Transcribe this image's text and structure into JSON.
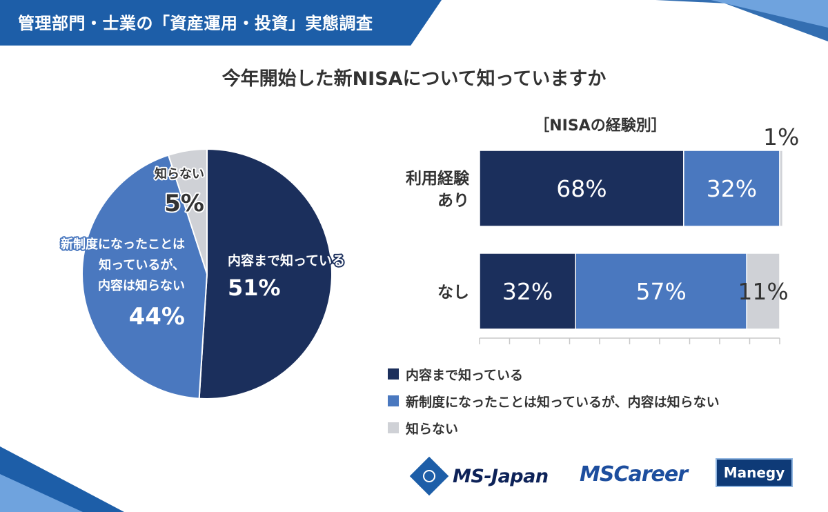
{
  "header": {
    "title": "管理部門・士業の「資産運用・投資」実態調査"
  },
  "question": "今年開始した新NISAについて知っていますか",
  "colors": {
    "header": "#1d5ea8",
    "know_content": "#1b2f5c",
    "know_system": "#4a78bf",
    "dont_know": "#cfd1d6"
  },
  "chart_data": [
    {
      "type": "pie",
      "title": "",
      "slices": [
        {
          "key": "know_content",
          "label": "内容まで知っている",
          "value": 51,
          "value_label": "51%"
        },
        {
          "key": "know_system",
          "label_lines": [
            "新制度になったことは",
            "知っているが、",
            "内容は知らない"
          ],
          "value": 44,
          "value_label": "44%"
        },
        {
          "key": "dont_know",
          "label": "知らない",
          "value": 5,
          "value_label": "5%"
        }
      ]
    },
    {
      "type": "bar",
      "orientation": "horizontal",
      "stacked": true,
      "title": "［NISAの経験別］",
      "categories": [
        {
          "label_lines": [
            "利用経験",
            "あり"
          ]
        },
        {
          "label_lines": [
            "なし"
          ]
        }
      ],
      "series": [
        {
          "name": "内容まで知っている",
          "key": "know_content",
          "values": [
            68,
            32
          ],
          "value_labels": [
            "68%",
            "32%"
          ]
        },
        {
          "name": "新制度になったことは知っているが、内容は知らない",
          "key": "know_system",
          "values": [
            32,
            57
          ],
          "value_labels": [
            "32%",
            "57%"
          ]
        },
        {
          "name": "知らない",
          "key": "dont_know",
          "values": [
            1,
            11
          ],
          "value_labels": [
            "1%",
            "11%"
          ]
        }
      ],
      "xlim": [
        0,
        100
      ],
      "legend": "bottom"
    }
  ],
  "legend": [
    {
      "label": "内容まで知っている",
      "key": "know_content"
    },
    {
      "label": "新制度になったことは知っているが、内容は知らない",
      "key": "know_system"
    },
    {
      "label": "知らない",
      "key": "dont_know"
    }
  ],
  "logos": {
    "msjapan": "MS-Japan",
    "mscareer": "MSCareer",
    "manegy": "Manegy"
  }
}
